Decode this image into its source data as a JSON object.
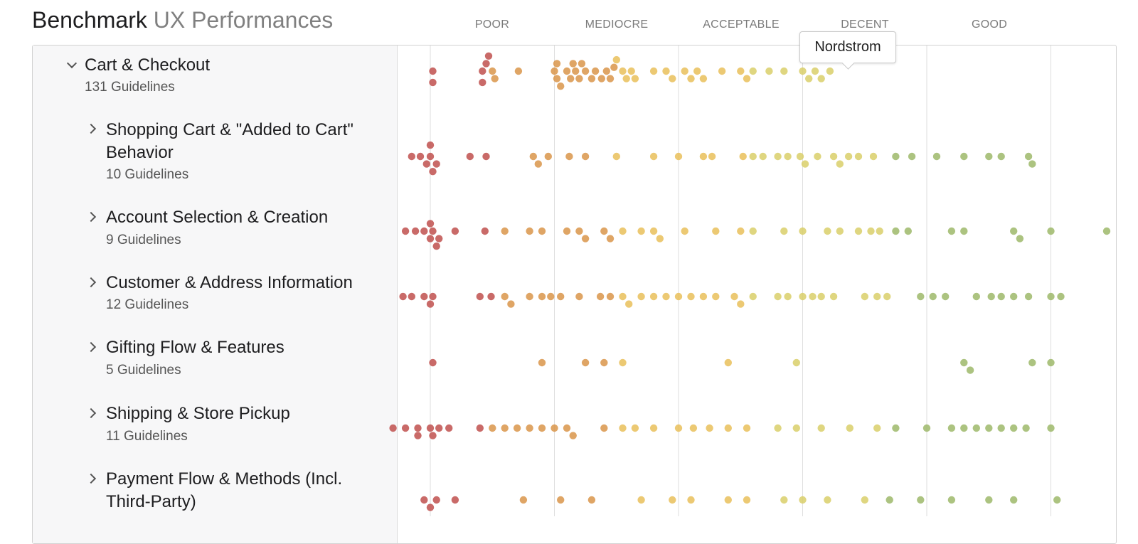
{
  "header": {
    "title_bold": "Benchmark",
    "title_light": "UX Performances"
  },
  "columns": [
    "POOR",
    "MEDIOCRE",
    "ACCEPTABLE",
    "DECENT",
    "GOOD"
  ],
  "tooltip": "Nordstrom",
  "rows": [
    {
      "name": "Cart & Checkout",
      "count": "131 Guidelines",
      "expanded": true
    },
    {
      "name": "Shopping Cart & \"Added to Cart\" Behavior",
      "name_lines": [
        "Shopping Cart & \"Added to Cart\"",
        "Behavior"
      ],
      "count": "10 Guidelines",
      "expanded": false
    },
    {
      "name": "Account Selection & Creation",
      "count": "9 Guidelines",
      "expanded": false
    },
    {
      "name": "Customer & Address Information",
      "count": "12 Guidelines",
      "expanded": false
    },
    {
      "name": "Gifting Flow & Features",
      "count": "5 Guidelines",
      "expanded": false
    },
    {
      "name": "Shipping & Store Pickup",
      "count": "11 Guidelines",
      "expanded": false
    },
    {
      "name": "Payment Flow & Methods (Incl. Third-Party)",
      "name_lines": [
        "Payment Flow & Methods (Incl.",
        "Third-Party)"
      ],
      "count": "",
      "expanded": false
    }
  ],
  "colors": {
    "poor": "#c0504d",
    "mediocre": "#d9954a",
    "acceptable": "#e9c05a",
    "decent": "#d9cf6a",
    "good": "#9db86a"
  },
  "chart_data": {
    "type": "scatter",
    "title": "",
    "categories": [
      "POOR",
      "MEDIOCRE",
      "ACCEPTABLE",
      "DECENT",
      "GOOD"
    ],
    "xlim": [
      0,
      5.5
    ],
    "grid": true,
    "series": [
      {
        "values": [
          0.02,
          0.02,
          0.42,
          0.42,
          0.45,
          0.47,
          0.5,
          0.52,
          0.71,
          1.0,
          1.02,
          1.02,
          1.05,
          1.1,
          1.13,
          1.15,
          1.17,
          1.2,
          1.22,
          1.25,
          1.3,
          1.33,
          1.38,
          1.42,
          1.45,
          1.48,
          1.5,
          1.55,
          1.58,
          1.62,
          1.65,
          1.8,
          1.9,
          1.95,
          2.05,
          2.1,
          2.15,
          2.2,
          2.35,
          2.5,
          2.55,
          2.6,
          2.73,
          2.85,
          3.0,
          3.05,
          3.1,
          3.15,
          3.22
        ]
      },
      {
        "values": [
          -0.15,
          -0.08,
          -0.03,
          0.0,
          0.0,
          0.02,
          0.05,
          0.32,
          0.45,
          0.83,
          0.87,
          0.95,
          1.12,
          1.25,
          1.5,
          1.8,
          2.0,
          2.2,
          2.27,
          2.52,
          2.6,
          2.68,
          2.8,
          2.88,
          2.98,
          3.02,
          3.12,
          3.25,
          3.3,
          3.37,
          3.45,
          3.57,
          3.75,
          3.88,
          4.08,
          4.3,
          4.5,
          4.6,
          4.82,
          4.85
        ]
      },
      {
        "values": [
          -0.2,
          -0.12,
          -0.05,
          0.0,
          0.0,
          0.02,
          0.05,
          0.07,
          0.2,
          0.44,
          0.6,
          0.8,
          0.9,
          1.1,
          1.2,
          1.25,
          1.4,
          1.45,
          1.55,
          1.7,
          1.8,
          1.85,
          2.05,
          2.3,
          2.5,
          2.6,
          2.85,
          3.0,
          3.2,
          3.3,
          3.45,
          3.55,
          3.62,
          3.75,
          3.85,
          4.2,
          4.3,
          4.7,
          4.75,
          5.0,
          5.45
        ]
      },
      {
        "values": [
          -0.22,
          -0.15,
          -0.05,
          0.0,
          0.02,
          0.4,
          0.49,
          0.6,
          0.65,
          0.8,
          0.9,
          0.97,
          1.05,
          1.2,
          1.37,
          1.45,
          1.55,
          1.6,
          1.7,
          1.8,
          1.9,
          2.0,
          2.1,
          2.2,
          2.3,
          2.45,
          2.5,
          2.6,
          2.8,
          2.88,
          3.0,
          3.08,
          3.15,
          3.25,
          3.5,
          3.6,
          3.68,
          3.95,
          4.05,
          4.15,
          4.4,
          4.52,
          4.6,
          4.7,
          4.82,
          5.0,
          5.08
        ]
      },
      {
        "values": [
          0.02,
          0.9,
          1.25,
          1.4,
          1.55,
          2.4,
          2.95,
          4.3,
          4.35,
          4.85,
          5.0
        ]
      },
      {
        "values": [
          -0.3,
          -0.2,
          -0.1,
          0.0,
          0.02,
          0.07,
          0.15,
          -0.1,
          0.4,
          0.5,
          0.6,
          0.7,
          0.8,
          0.9,
          1.0,
          1.1,
          1.15,
          1.4,
          1.55,
          1.65,
          1.8,
          2.0,
          2.12,
          2.25,
          2.4,
          2.55,
          2.8,
          2.95,
          3.15,
          3.38,
          3.6,
          3.75,
          4.0,
          4.2,
          4.3,
          4.4,
          4.5,
          4.6,
          4.7,
          4.8,
          5.0
        ]
      },
      {
        "values": [
          -0.05,
          0.0,
          0.05,
          0.2,
          0.75,
          1.05,
          1.3,
          1.7,
          1.95,
          2.1,
          2.4,
          2.55,
          2.85,
          3.0,
          3.2,
          3.5,
          3.7,
          3.95,
          4.2,
          4.5,
          4.7,
          5.05
        ]
      }
    ]
  }
}
